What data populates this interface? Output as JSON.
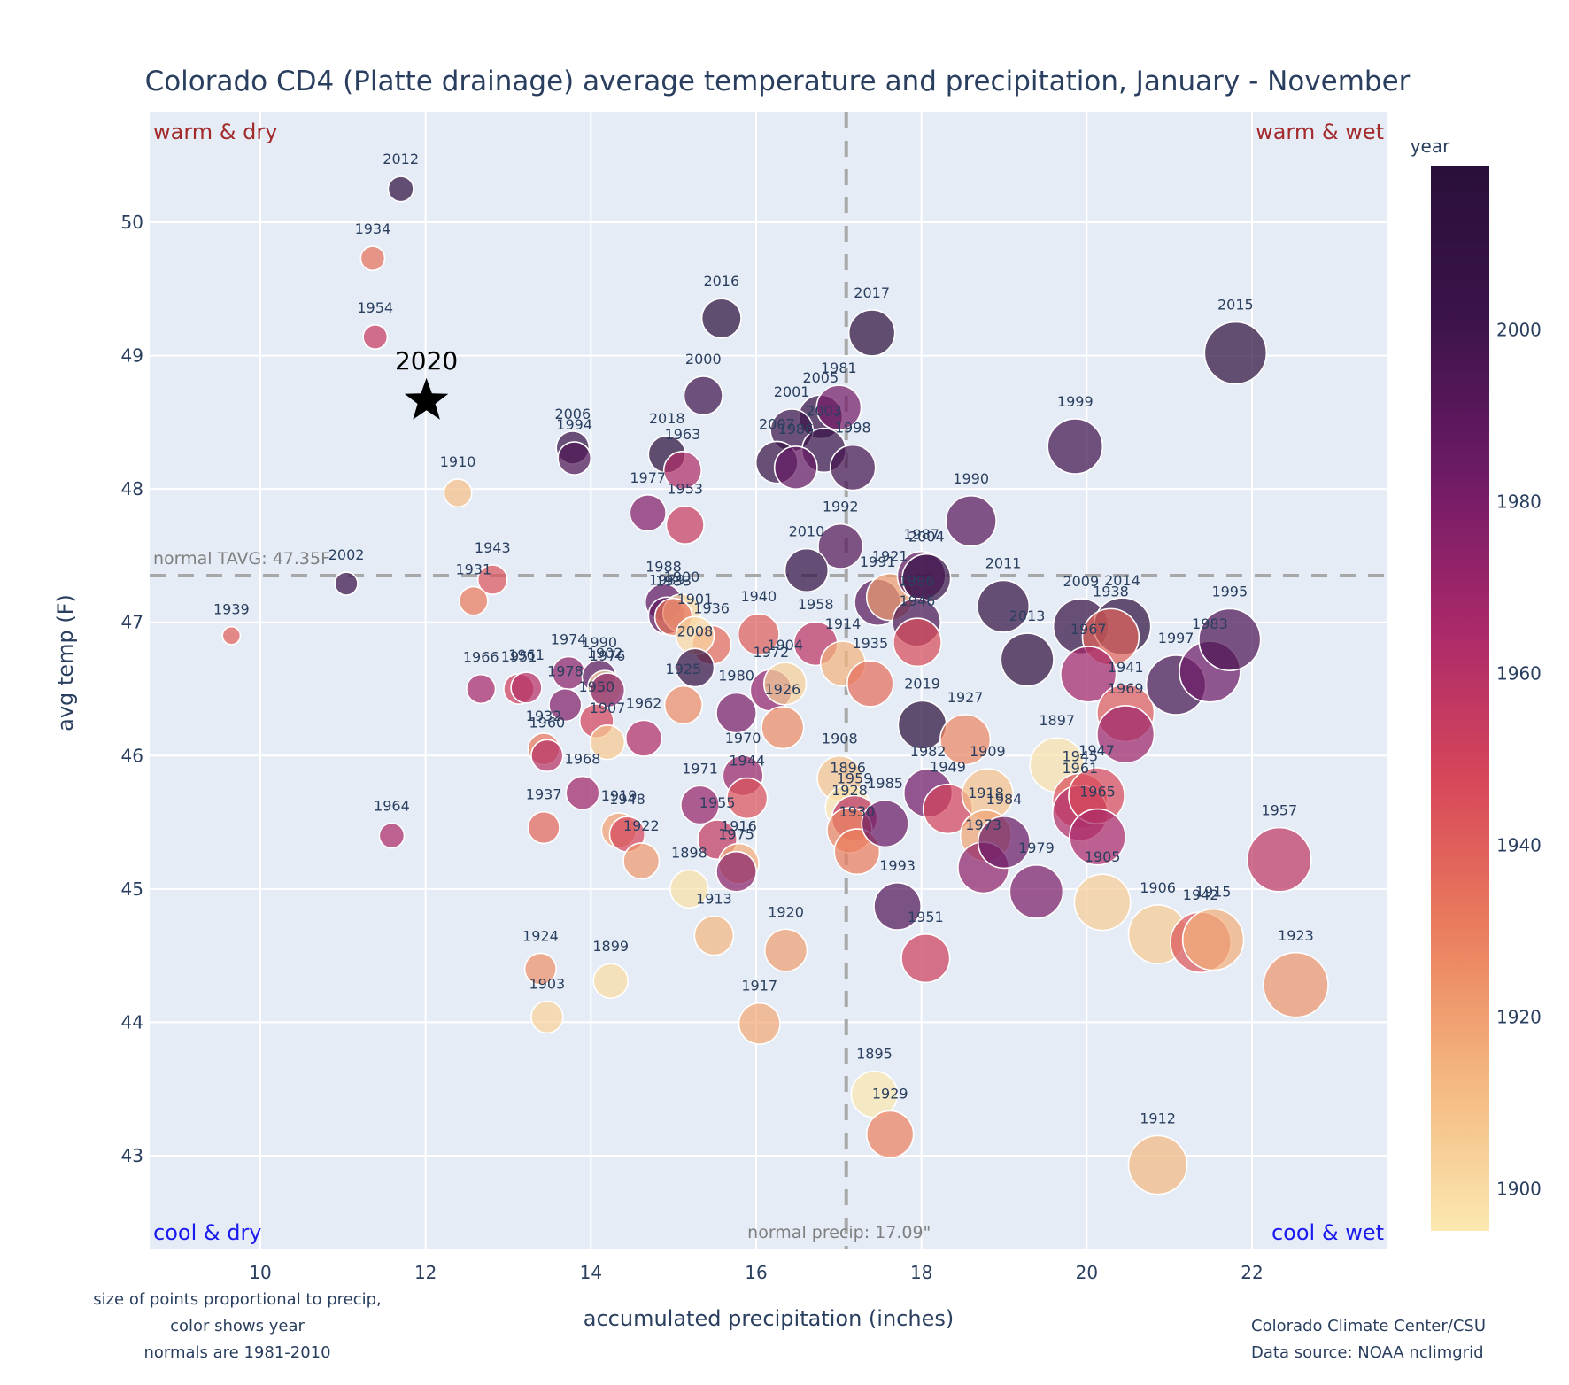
{
  "chart_data": {
    "type": "scatter",
    "title": "Colorado CD4 (Platte drainage) average temperature and precipitation, January - November",
    "xlabel": "accumulated precipitation (inches)",
    "ylabel": "avg temp (F)",
    "xlim": [
      8.7,
      23.7
    ],
    "ylim": [
      42.4,
      50.8
    ],
    "xticks": [
      10,
      12,
      14,
      16,
      18,
      20,
      22
    ],
    "yticks": [
      43,
      44,
      45,
      46,
      47,
      48,
      49,
      50
    ],
    "grid": true,
    "size_encoding": "precipitation",
    "color_encoding": "year",
    "colorbar": {
      "title": "year",
      "range": [
        1895,
        2019
      ],
      "ticks": [
        1900,
        1920,
        1940,
        1960,
        1980,
        2000
      ],
      "colorscale": [
        "#fbe8b0",
        "#f4b780",
        "#ea7c5c",
        "#d6455a",
        "#a8286a",
        "#6c1a66",
        "#3b1349",
        "#2a0f3a"
      ],
      "placement": "right"
    },
    "normals": {
      "tavg": 47.35,
      "tavg_label": "normal TAVG: 47.35F",
      "precip": 17.09,
      "precip_label": "normal precip: 17.09\""
    },
    "quadrants": {
      "top_left": "warm & dry",
      "top_right": "warm & wet",
      "bottom_left": "cool & dry",
      "bottom_right": "cool & wet"
    },
    "highlight": {
      "year": "2020",
      "precip": 12.01,
      "temp": 48.66,
      "marker": "star"
    },
    "points": [
      {
        "year": 2012,
        "precip": 11.7,
        "temp": 50.25
      },
      {
        "year": 1934,
        "precip": 11.36,
        "temp": 49.73
      },
      {
        "year": 1954,
        "precip": 11.39,
        "temp": 49.14
      },
      {
        "year": 1910,
        "precip": 12.39,
        "temp": 47.97
      },
      {
        "year": 2002,
        "precip": 11.04,
        "temp": 47.29
      },
      {
        "year": 1939,
        "precip": 9.65,
        "temp": 46.9
      },
      {
        "year": 1943,
        "precip": 12.81,
        "temp": 47.32
      },
      {
        "year": 1931,
        "precip": 12.58,
        "temp": 47.16
      },
      {
        "year": 1964,
        "precip": 11.59,
        "temp": 45.4
      },
      {
        "year": 1966,
        "precip": 12.67,
        "temp": 46.5
      },
      {
        "year": 1951,
        "precip": 13.13,
        "temp": 46.5
      },
      {
        "year": 1961,
        "precip": 13.22,
        "temp": 46.51
      },
      {
        "year": 1974,
        "precip": 13.73,
        "temp": 46.62
      },
      {
        "year": 1978,
        "precip": 13.69,
        "temp": 46.38
      },
      {
        "year": 1990,
        "precip": 14.1,
        "temp": 46.59
      },
      {
        "year": 1902,
        "precip": 14.17,
        "temp": 46.51
      },
      {
        "year": 1976,
        "precip": 14.2,
        "temp": 46.49
      },
      {
        "year": 1950,
        "precip": 14.07,
        "temp": 46.26
      },
      {
        "year": 1907,
        "precip": 14.2,
        "temp": 46.1
      },
      {
        "year": 1932,
        "precip": 13.43,
        "temp": 46.05
      },
      {
        "year": 1960,
        "precip": 13.47,
        "temp": 46.0
      },
      {
        "year": 1962,
        "precip": 14.64,
        "temp": 46.13
      },
      {
        "year": 1968,
        "precip": 13.9,
        "temp": 45.72
      },
      {
        "year": 1937,
        "precip": 13.43,
        "temp": 45.46
      },
      {
        "year": 1919,
        "precip": 14.34,
        "temp": 45.44
      },
      {
        "year": 1948,
        "precip": 14.44,
        "temp": 45.41
      },
      {
        "year": 1922,
        "precip": 14.61,
        "temp": 45.21
      },
      {
        "year": 1924,
        "precip": 13.39,
        "temp": 44.4
      },
      {
        "year": 1903,
        "precip": 13.47,
        "temp": 44.04
      },
      {
        "year": 1899,
        "precip": 14.24,
        "temp": 44.31
      },
      {
        "year": 2006,
        "precip": 13.78,
        "temp": 48.31
      },
      {
        "year": 1994,
        "precip": 13.8,
        "temp": 48.23
      },
      {
        "year": 2018,
        "precip": 14.92,
        "temp": 48.26
      },
      {
        "year": 1963,
        "precip": 15.11,
        "temp": 48.14
      },
      {
        "year": 1977,
        "precip": 14.69,
        "temp": 47.82
      },
      {
        "year": 1953,
        "precip": 15.14,
        "temp": 47.73
      },
      {
        "year": 2016,
        "precip": 15.58,
        "temp": 49.28
      },
      {
        "year": 2000,
        "precip": 15.36,
        "temp": 48.7
      },
      {
        "year": 1988,
        "precip": 14.88,
        "temp": 47.15
      },
      {
        "year": 1989,
        "precip": 14.92,
        "temp": 47.05
      },
      {
        "year": 1900,
        "precip": 15.1,
        "temp": 47.07
      },
      {
        "year": 1933,
        "precip": 15.0,
        "temp": 47.04
      },
      {
        "year": 1936,
        "precip": 15.46,
        "temp": 46.83
      },
      {
        "year": 1901,
        "precip": 15.26,
        "temp": 46.9
      },
      {
        "year": 1908,
        "precip": 17.01,
        "temp": 45.83
      },
      {
        "year": 1925,
        "precip": 15.12,
        "temp": 46.38
      },
      {
        "year": 2008,
        "precip": 15.26,
        "temp": 46.66
      },
      {
        "year": 1940,
        "precip": 16.03,
        "temp": 46.91
      },
      {
        "year": 1958,
        "precip": 16.72,
        "temp": 46.84
      },
      {
        "year": 1914,
        "precip": 17.05,
        "temp": 46.69
      },
      {
        "year": 1935,
        "precip": 17.38,
        "temp": 46.54
      },
      {
        "year": 1972,
        "precip": 16.18,
        "temp": 46.49
      },
      {
        "year": 1904,
        "precip": 16.35,
        "temp": 46.54
      },
      {
        "year": 1926,
        "precip": 16.32,
        "temp": 46.21
      },
      {
        "year": 1980,
        "precip": 15.76,
        "temp": 46.32
      },
      {
        "year": 1970,
        "precip": 15.84,
        "temp": 45.85
      },
      {
        "year": 1944,
        "precip": 15.89,
        "temp": 45.68
      },
      {
        "year": 1971,
        "precip": 15.32,
        "temp": 45.63
      },
      {
        "year": 1955,
        "precip": 15.53,
        "temp": 45.37
      },
      {
        "year": 1916,
        "precip": 15.79,
        "temp": 45.19
      },
      {
        "year": 1975,
        "precip": 15.76,
        "temp": 45.13
      },
      {
        "year": 1898,
        "precip": 15.19,
        "temp": 45.0
      },
      {
        "year": 1913,
        "precip": 15.49,
        "temp": 44.65
      },
      {
        "year": 1920,
        "precip": 16.36,
        "temp": 44.54
      },
      {
        "year": 1917,
        "precip": 16.04,
        "temp": 43.99
      },
      {
        "year": 1896,
        "precip": 17.11,
        "temp": 45.61
      },
      {
        "year": 1959,
        "precip": 17.19,
        "temp": 45.53
      },
      {
        "year": 1928,
        "precip": 17.13,
        "temp": 45.44
      },
      {
        "year": 1930,
        "precip": 17.22,
        "temp": 45.28
      },
      {
        "year": 1985,
        "precip": 17.56,
        "temp": 45.49
      },
      {
        "year": 1993,
        "precip": 17.71,
        "temp": 44.87
      },
      {
        "year": 1951.5,
        "precip": 18.05,
        "temp": 44.48,
        "label": "1951"
      },
      {
        "year": 1982,
        "precip": 18.08,
        "temp": 45.72
      },
      {
        "year": 1949,
        "precip": 18.32,
        "temp": 45.6
      },
      {
        "year": 1909,
        "precip": 18.8,
        "temp": 45.71
      },
      {
        "year": 1918,
        "precip": 18.78,
        "temp": 45.4
      },
      {
        "year": 1973,
        "precip": 18.75,
        "temp": 45.16
      },
      {
        "year": 1984,
        "precip": 19.0,
        "temp": 45.35
      },
      {
        "year": 1979,
        "precip": 19.39,
        "temp": 44.98
      },
      {
        "year": 2019,
        "precip": 18.01,
        "temp": 46.23
      },
      {
        "year": 1927,
        "precip": 18.53,
        "temp": 46.12
      },
      {
        "year": 2017,
        "precip": 17.4,
        "temp": 49.17
      },
      {
        "year": 2005,
        "precip": 16.78,
        "temp": 48.54
      },
      {
        "year": 1981,
        "precip": 17.0,
        "temp": 48.61
      },
      {
        "year": 2001,
        "precip": 16.43,
        "temp": 48.44
      },
      {
        "year": 2003,
        "precip": 16.82,
        "temp": 48.29
      },
      {
        "year": 2007,
        "precip": 16.25,
        "temp": 48.2
      },
      {
        "year": 1986,
        "precip": 16.48,
        "temp": 48.16
      },
      {
        "year": 1998,
        "precip": 17.17,
        "temp": 48.16
      },
      {
        "year": 1992,
        "precip": 17.02,
        "temp": 47.57
      },
      {
        "year": 2010,
        "precip": 16.61,
        "temp": 47.39
      },
      {
        "year": 1991,
        "precip": 17.47,
        "temp": 47.15
      },
      {
        "year": 1921,
        "precip": 17.62,
        "temp": 47.19
      },
      {
        "year": 1987,
        "precip": 18.0,
        "temp": 47.35
      },
      {
        "year": 2004,
        "precip": 18.06,
        "temp": 47.33
      },
      {
        "year": 1996,
        "precip": 17.94,
        "temp": 47.0
      },
      {
        "year": 1946,
        "precip": 17.95,
        "temp": 46.85
      },
      {
        "year": 1990.5,
        "precip": 18.6,
        "temp": 47.76,
        "label": "1990"
      },
      {
        "year": 1999,
        "precip": 19.86,
        "temp": 48.32
      },
      {
        "year": 2011,
        "precip": 18.99,
        "temp": 47.12
      },
      {
        "year": 2013,
        "precip": 19.28,
        "temp": 46.72
      },
      {
        "year": 2009,
        "precip": 19.93,
        "temp": 46.97
      },
      {
        "year": 2014,
        "precip": 20.43,
        "temp": 46.97
      },
      {
        "year": 1938,
        "precip": 20.29,
        "temp": 46.89
      },
      {
        "year": 1967,
        "precip": 20.02,
        "temp": 46.61
      },
      {
        "year": 1941,
        "precip": 20.47,
        "temp": 46.32
      },
      {
        "year": 1969,
        "precip": 20.47,
        "temp": 46.16
      },
      {
        "year": 1997,
        "precip": 21.08,
        "temp": 46.53
      },
      {
        "year": 1983,
        "precip": 21.49,
        "temp": 46.63
      },
      {
        "year": 1995,
        "precip": 21.73,
        "temp": 46.87
      },
      {
        "year": 2015,
        "precip": 21.8,
        "temp": 49.02
      },
      {
        "year": 1897,
        "precip": 19.64,
        "temp": 45.93
      },
      {
        "year": 1945,
        "precip": 19.92,
        "temp": 45.66
      },
      {
        "year": 1961.5,
        "precip": 19.92,
        "temp": 45.57,
        "label": "1961"
      },
      {
        "year": 1947,
        "precip": 20.12,
        "temp": 45.7
      },
      {
        "year": 1965,
        "precip": 20.13,
        "temp": 45.39
      },
      {
        "year": 1905,
        "precip": 20.19,
        "temp": 44.9
      },
      {
        "year": 1906,
        "precip": 20.86,
        "temp": 44.66
      },
      {
        "year": 1942,
        "precip": 21.38,
        "temp": 44.6
      },
      {
        "year": 1915,
        "precip": 21.53,
        "temp": 44.62
      },
      {
        "year": 1957,
        "precip": 22.33,
        "temp": 45.22
      },
      {
        "year": 1923,
        "precip": 22.53,
        "temp": 44.28
      },
      {
        "year": 1912,
        "precip": 20.86,
        "temp": 42.93
      },
      {
        "year": 1895,
        "precip": 17.43,
        "temp": 43.46
      },
      {
        "year": 1929,
        "precip": 17.62,
        "temp": 43.16
      }
    ],
    "notes": {
      "left": [
        "size of points proportional to precip,",
        "color shows year",
        "normals are 1981-2010"
      ],
      "right": [
        "Colorado Climate Center/CSU",
        "Data source: NOAA nclimgrid"
      ]
    }
  }
}
